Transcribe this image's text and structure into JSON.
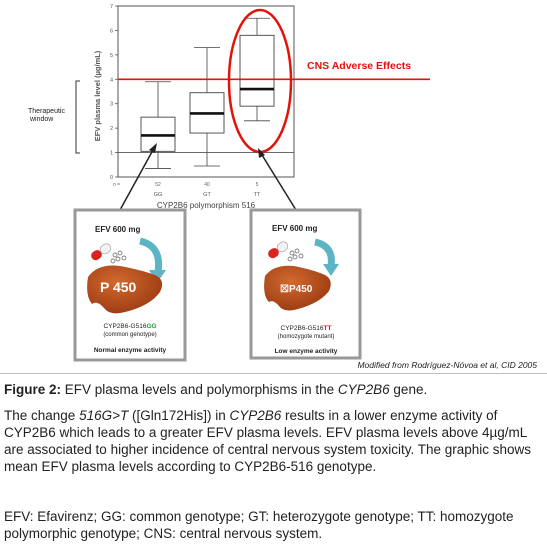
{
  "chart_data": {
    "type": "boxplot",
    "ylabel": "EFV plasma level (µg/mL)",
    "xlabel": "CYP2B6 polymorphism 516",
    "categories": [
      "GG",
      "GT",
      "TT"
    ],
    "n_row_label": "n =",
    "n_values": [
      "52",
      "40",
      "5"
    ],
    "ylim": [
      0,
      7
    ],
    "yticks": [
      "0",
      "1",
      "2",
      "3",
      "4",
      "5",
      "6",
      "7"
    ],
    "boxes": [
      {
        "category": "GG",
        "min": 0.35,
        "q1": 1.05,
        "median": 1.7,
        "q3": 2.45,
        "max": 3.9
      },
      {
        "category": "GT",
        "min": 0.45,
        "q1": 1.8,
        "median": 2.6,
        "q3": 3.45,
        "max": 5.3
      },
      {
        "category": "TT",
        "min": 2.3,
        "q1": 2.9,
        "median": 3.6,
        "q3": 5.8,
        "max": 6.5
      }
    ],
    "threshold_lines": [
      {
        "y": 4,
        "label": "CNS Adverse Effects",
        "color": "#e3120b"
      },
      {
        "y": 1,
        "label": "",
        "color": "#555555"
      }
    ],
    "therapeutic_window": {
      "label_line1": "Therapeutic",
      "label_line2": "window",
      "range": [
        1,
        4
      ]
    },
    "highlight_color": "#e3120b"
  },
  "panels": {
    "left": {
      "dose": "EFV 600 mg",
      "enzyme": "P 450",
      "genotype_prefix": "CYP2B6-G516",
      "genotype_suffix": "GG",
      "genotype_color": "#1a9e3a",
      "genotype_note": "(common genotype)",
      "activity": "Normal enzyme activity"
    },
    "right": {
      "dose": "EFV 600 mg",
      "enzyme": "☒P450",
      "genotype_prefix": "CYP2B6-G516",
      "genotype_suffix": "TT",
      "genotype_color": "#e3120b",
      "genotype_note": "(homozygote mutant)",
      "activity": "Low enzyme activity"
    }
  },
  "credit": "Modified from Rodríguez-Nóvoa et al, CID 2005",
  "caption": {
    "figure_label": "Figure 2:",
    "figure_title_pre": " EFV plasma levels and polymorphisms in the ",
    "figure_title_gene": "CYP2B6",
    "figure_title_post": " gene.",
    "para1_a": "The change ",
    "para1_b": "516G>T",
    "para1_c": " ([Gln172His]) in ",
    "para1_d": "CYP2B6",
    "para1_e": " results in a lower enzyme activity of CYP2B6 which leads to a greater EFV plasma levels. EFV plasma levels above 4µg/mL are associated to higher incidence of central nervous system toxicity. The graphic shows mean EFV plasma levels according to CYP2B6-516 genotype.",
    "para2": "EFV: Efavirenz; GG: common genotype; GT: heterozygote genotype; TT: homozygote polymorphic genotype; CNS: central nervous system."
  }
}
